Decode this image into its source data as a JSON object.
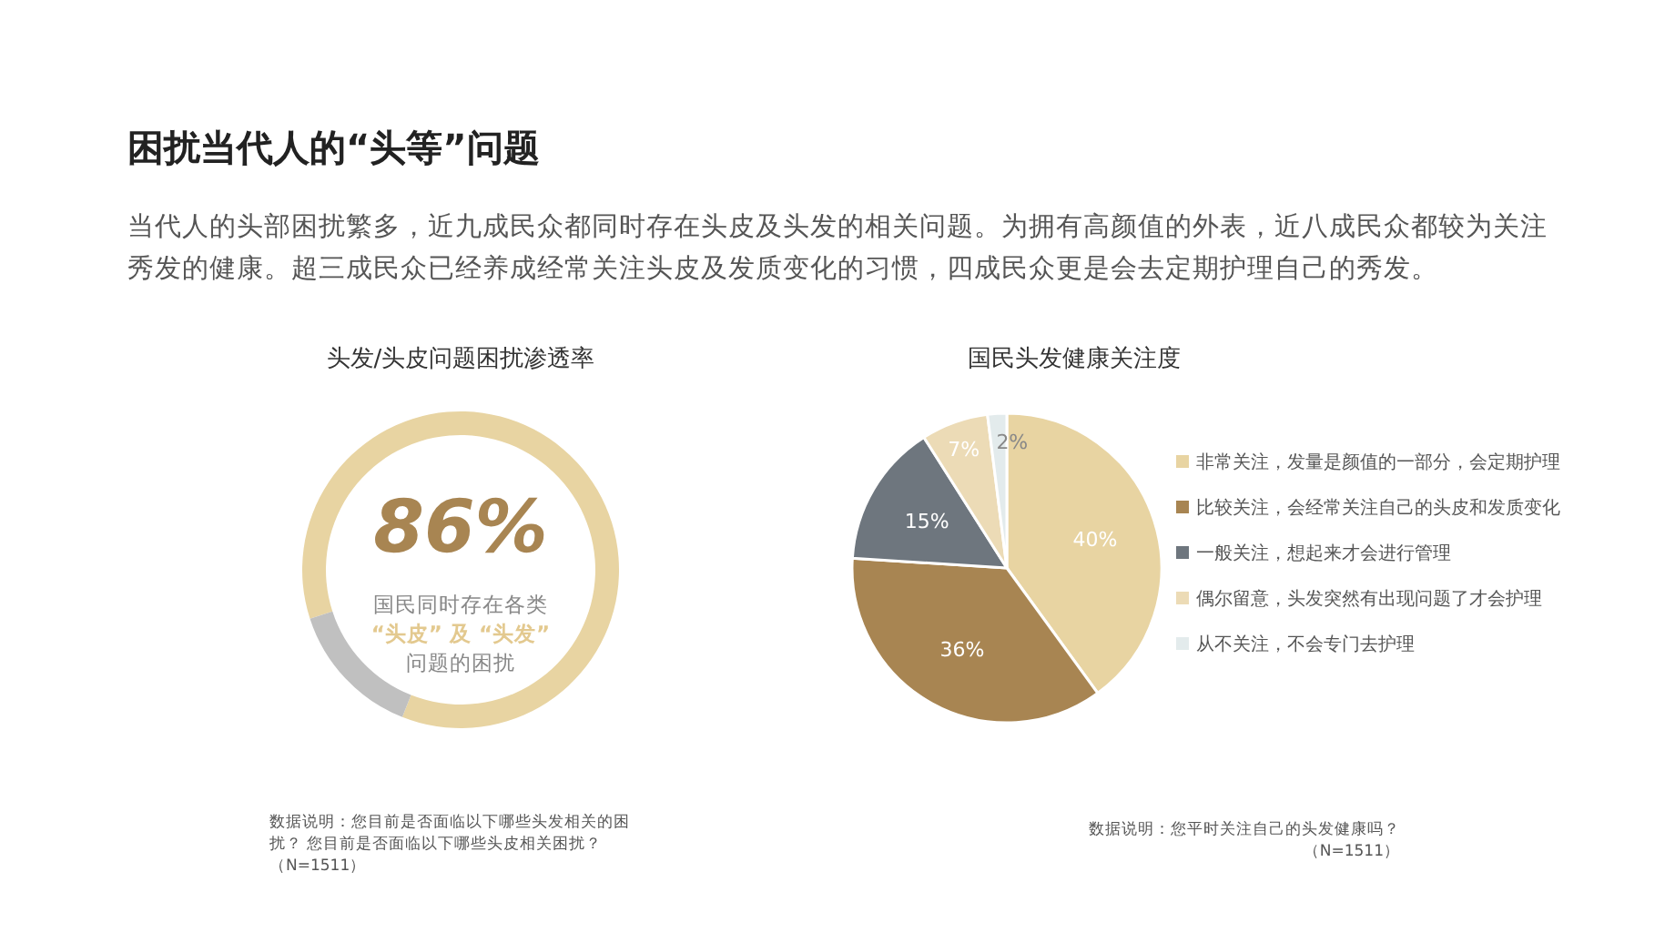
{
  "chart_data": [
    {
      "type": "other",
      "title": "困扰当代人的“头等”问题",
      "subtitle": "当代人的头部困扰繁多，近九成民众都同时存在头皮及头发的相关问题。为拥有高颜值的外表，近八成民众都较为关注秀发的健康。超三成民众已经养成经常关注头皮及发质变化的习惯，四成民众更是会去定期护理自己的秀发。"
    },
    {
      "type": "donut",
      "title": "头发/头皮问题困扰渗透率",
      "categories": [
        null,
        null
      ],
      "values": [
        86,
        14
      ],
      "colors": [
        "#e8d4a2",
        "#c0c0c0"
      ],
      "annotations": [
        "86%",
        "国民同时存在各类",
        "“头皮” 及 “头发”",
        "问题的困扰",
        "数据说明：您目前是否面临以下哪些头发相关的困扰？ 您目前是否面临以下哪些头皮相关困扰？（N=1511）"
      ]
    },
    {
      "type": "pie",
      "title": "国民头发健康关注度",
      "categories": [
        "非常关注，发量是颜值的一部分，会定期护理",
        "比较关注，会经常关注自己的头皮和发质变化",
        "一般关注，想起来才会进行管理",
        "偶尔留意，头发突然有出现问题了才会护理",
        "从不关注，不会专门去护理"
      ],
      "values": [
        40,
        36,
        15,
        7,
        2
      ],
      "value_labels": [
        "40%",
        "36%",
        "15%",
        "7%",
        "2%"
      ],
      "colors": [
        "#e8d4a2",
        "#a88552",
        "#6e767e",
        "#ecdbb6",
        "#e3ebec"
      ],
      "legend": "right",
      "annotations": [
        "数据说明：您平时关注自己的头发健康吗？（N=1511）"
      ]
    }
  ]
}
